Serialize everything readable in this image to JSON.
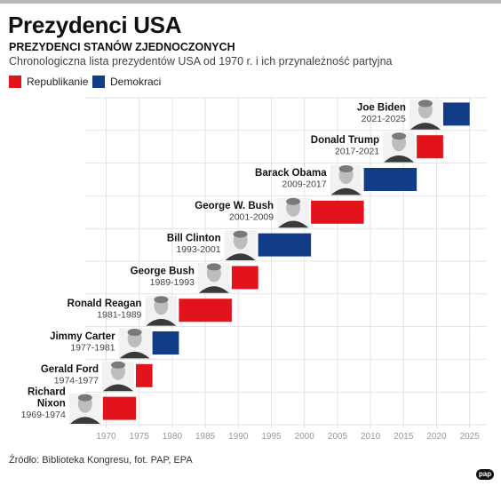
{
  "header": {
    "title": "Prezydenci USA",
    "subtitle": "PREZYDENCI STANÓW ZJEDNOCZONYCH",
    "description": "Chronologiczna lista prezydentów USA od 1970 r. i ich przynależność partyjna"
  },
  "legend": {
    "republican": "Republikanie",
    "democrat": "Demokraci"
  },
  "colors": {
    "republican": "#e3131b",
    "democrat": "#123c85",
    "grid": "#e2e2e2",
    "tick_text": "#999999"
  },
  "footer": {
    "source": "Źródło: Biblioteka Kongresu, fot. PAP, EPA",
    "logo": "pap"
  },
  "chart_data": {
    "type": "bar",
    "orientation": "timeline",
    "xlim": [
      1968,
      2027
    ],
    "x_ticks": [
      1970,
      1975,
      1980,
      1985,
      1990,
      1995,
      2000,
      2005,
      2010,
      2015,
      2020,
      2025
    ],
    "grid": true,
    "legend_position": "top-left",
    "series": [
      {
        "name": "Richard Nixon",
        "label_lines": [
          "Richard",
          "Nixon"
        ],
        "term": "1969-1974",
        "start": 1969.5,
        "end": 1974.5,
        "party": "republican"
      },
      {
        "name": "Gerald Ford",
        "label_lines": [
          "Gerald Ford"
        ],
        "term": "1974-1977",
        "start": 1974.5,
        "end": 1977,
        "party": "republican"
      },
      {
        "name": "Jimmy Carter",
        "label_lines": [
          "Jimmy Carter"
        ],
        "term": "1977-1981",
        "start": 1977,
        "end": 1981,
        "party": "democrat"
      },
      {
        "name": "Ronald Reagan",
        "label_lines": [
          "Ronald Reagan"
        ],
        "term": "1981-1989",
        "start": 1981,
        "end": 1989,
        "party": "republican"
      },
      {
        "name": "George Bush",
        "label_lines": [
          "George Bush"
        ],
        "term": "1989-1993",
        "start": 1989,
        "end": 1993,
        "party": "republican"
      },
      {
        "name": "Bill Clinton",
        "label_lines": [
          "Bill Clinton"
        ],
        "term": "1993-2001",
        "start": 1993,
        "end": 2001,
        "party": "democrat"
      },
      {
        "name": "George W. Bush",
        "label_lines": [
          "George W. Bush"
        ],
        "term": "2001-2009",
        "start": 2001,
        "end": 2009,
        "party": "republican"
      },
      {
        "name": "Barack Obama",
        "label_lines": [
          "Barack Obama"
        ],
        "term": "2009-2017",
        "start": 2009,
        "end": 2017,
        "party": "democrat"
      },
      {
        "name": "Donald Trump",
        "label_lines": [
          "Donald Trump"
        ],
        "term": "2017-2021",
        "start": 2017,
        "end": 2021,
        "party": "republican"
      },
      {
        "name": "Joe Biden",
        "label_lines": [
          "Joe Biden"
        ],
        "term": "2021-2025",
        "start": 2021,
        "end": 2025,
        "party": "democrat"
      }
    ]
  }
}
